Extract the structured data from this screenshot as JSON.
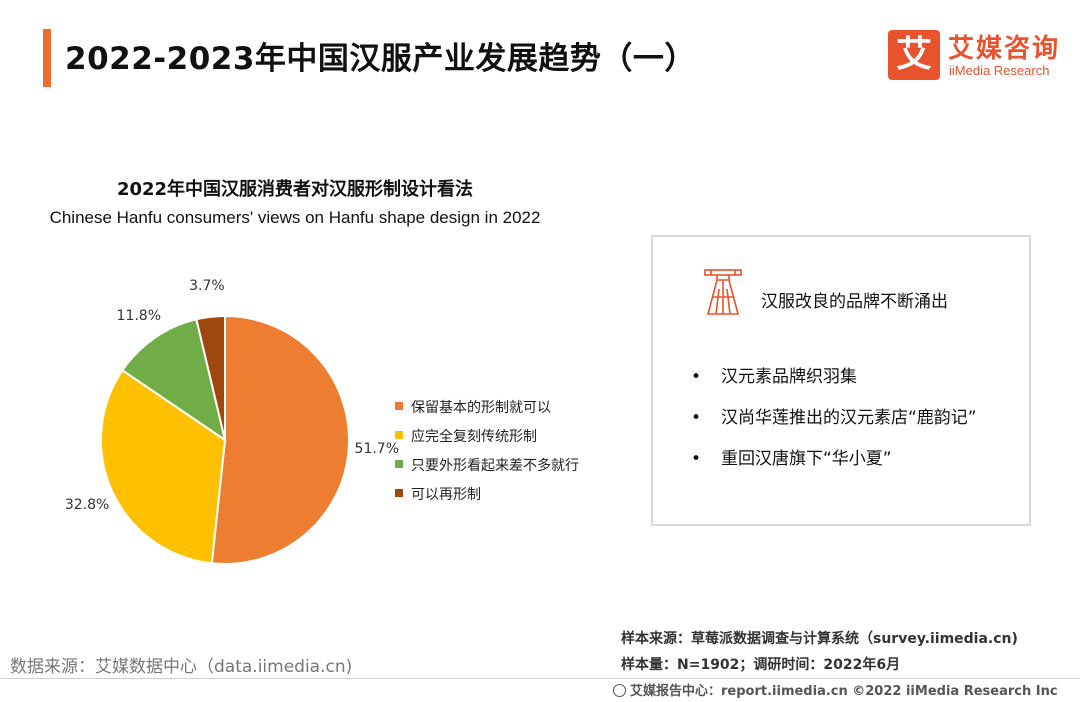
{
  "header": {
    "title": "2022-2023年中国汉服产业发展趋势（一）",
    "logo_mark": "艾",
    "logo_cn": "艾媒咨询",
    "logo_en": "iiMedia Research",
    "accent_color": "#ef6c2f"
  },
  "chart_data": {
    "type": "pie",
    "title": "2022年中国汉服消费者对汉服形制设计看法",
    "subtitle": "Chinese Hanfu consumers' views on Hanfu shape design in 2022",
    "categories": [
      "保留基本的形制就可以",
      "应完全复刻传统形制",
      "只要外形看起来差不多就行",
      "可以再形制"
    ],
    "values": [
      51.7,
      32.8,
      11.8,
      3.7
    ],
    "value_labels": [
      "51.7%",
      "32.8%",
      "11.8%",
      "3.7%"
    ],
    "colors": [
      "#ed7d31",
      "#ffc000",
      "#70ad47",
      "#9e480e"
    ],
    "legend_position": "right"
  },
  "info_box": {
    "icon": "hanfu-garment-icon",
    "heading": "汉服改良的品牌不断涌出",
    "bullet": "•",
    "items": [
      "汉元素品牌织羽集",
      "汉尚华莲推出的汉元素店“鹿韵记”",
      "重回汉唐旗下“华小夏”"
    ]
  },
  "footer": {
    "data_source": "数据来源：艾媒数据中心（data.iimedia.cn)",
    "sample_source": "样本来源：草莓派数据调查与计算系统（survey.iimedia.cn)",
    "sample_size": "样本量：N=1902；调研时间：2022年6月",
    "report_center": "艾媒报告中心：report.iimedia.cn  ©2022  iiMedia Research  Inc"
  }
}
